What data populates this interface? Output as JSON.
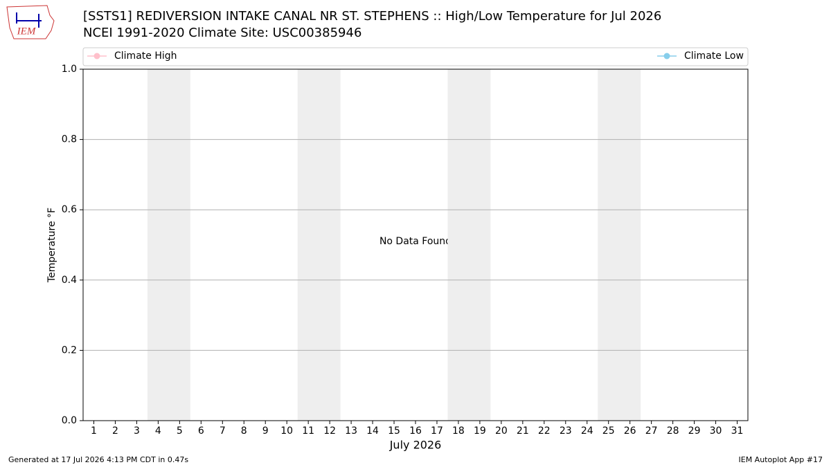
{
  "chart_data": {
    "type": "line",
    "title": "[SSTS1] REDIVERSION INTAKE CANAL NR ST. STEPHENS :: High/Low Temperature for Jul 2026",
    "subtitle": "NCEI 1991-2020 Climate Site: USC00385946",
    "logo_text": "IEM",
    "xlabel": "July 2026",
    "ylabel": "Temperature °F",
    "annotation": "No Data Found",
    "x": [
      1,
      2,
      3,
      4,
      5,
      6,
      7,
      8,
      9,
      10,
      11,
      12,
      13,
      14,
      15,
      16,
      17,
      18,
      19,
      20,
      21,
      22,
      23,
      24,
      25,
      26,
      27,
      28,
      29,
      30,
      31
    ],
    "series": [
      {
        "name": "Climate High",
        "color": "#ffc0cb",
        "values": [
          null,
          null,
          null,
          null,
          null,
          null,
          null,
          null,
          null,
          null,
          null,
          null,
          null,
          null,
          null,
          null,
          null,
          null,
          null,
          null,
          null,
          null,
          null,
          null,
          null,
          null,
          null,
          null,
          null,
          null,
          null
        ]
      },
      {
        "name": "Climate Low",
        "color": "#87ceeb",
        "values": [
          null,
          null,
          null,
          null,
          null,
          null,
          null,
          null,
          null,
          null,
          null,
          null,
          null,
          null,
          null,
          null,
          null,
          null,
          null,
          null,
          null,
          null,
          null,
          null,
          null,
          null,
          null,
          null,
          null,
          null,
          null
        ]
      }
    ],
    "weekend_bands": [
      [
        3.5,
        5.5
      ],
      [
        10.5,
        12.5
      ],
      [
        17.5,
        19.5
      ],
      [
        24.5,
        26.5
      ]
    ],
    "xlim": [
      0.5,
      31.5
    ],
    "xticks": [
      1,
      2,
      3,
      4,
      5,
      6,
      7,
      8,
      9,
      10,
      11,
      12,
      13,
      14,
      15,
      16,
      17,
      18,
      19,
      20,
      21,
      22,
      23,
      24,
      25,
      26,
      27,
      28,
      29,
      30,
      31
    ],
    "ylim": [
      0,
      1
    ],
    "yticks": [
      {
        "value": 0,
        "label": "0.0"
      },
      0.2,
      0.4,
      0.6,
      0.8,
      {
        "value": 1,
        "label": "1.0"
      }
    ],
    "grid": true,
    "footer_left": "Generated at 17 Jul 2026 4:13 PM CDT in 0.47s",
    "footer_right": "IEM Autoplot App #17"
  }
}
